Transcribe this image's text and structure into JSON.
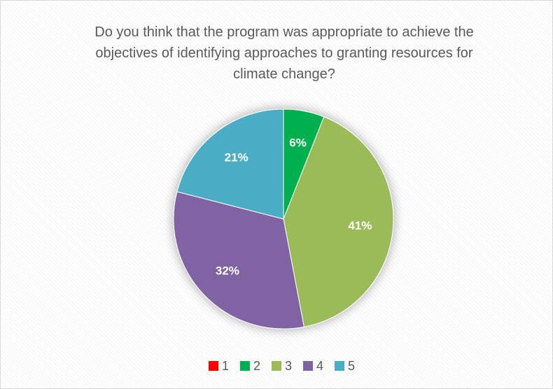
{
  "chart_data": {
    "type": "pie",
    "title": "Do you think that the program was appropriate to achieve the objectives of identifying approaches to granting resources for climate change?",
    "categories": [
      "1",
      "2",
      "3",
      "4",
      "5"
    ],
    "values": [
      0,
      6,
      41,
      32,
      21
    ],
    "value_labels": [
      null,
      "6%",
      "41%",
      "32%",
      "21%"
    ],
    "colors": [
      "#ff0000",
      "#00b050",
      "#9bbb59",
      "#8064a2",
      "#4bacc6"
    ],
    "legend": "bottom"
  }
}
